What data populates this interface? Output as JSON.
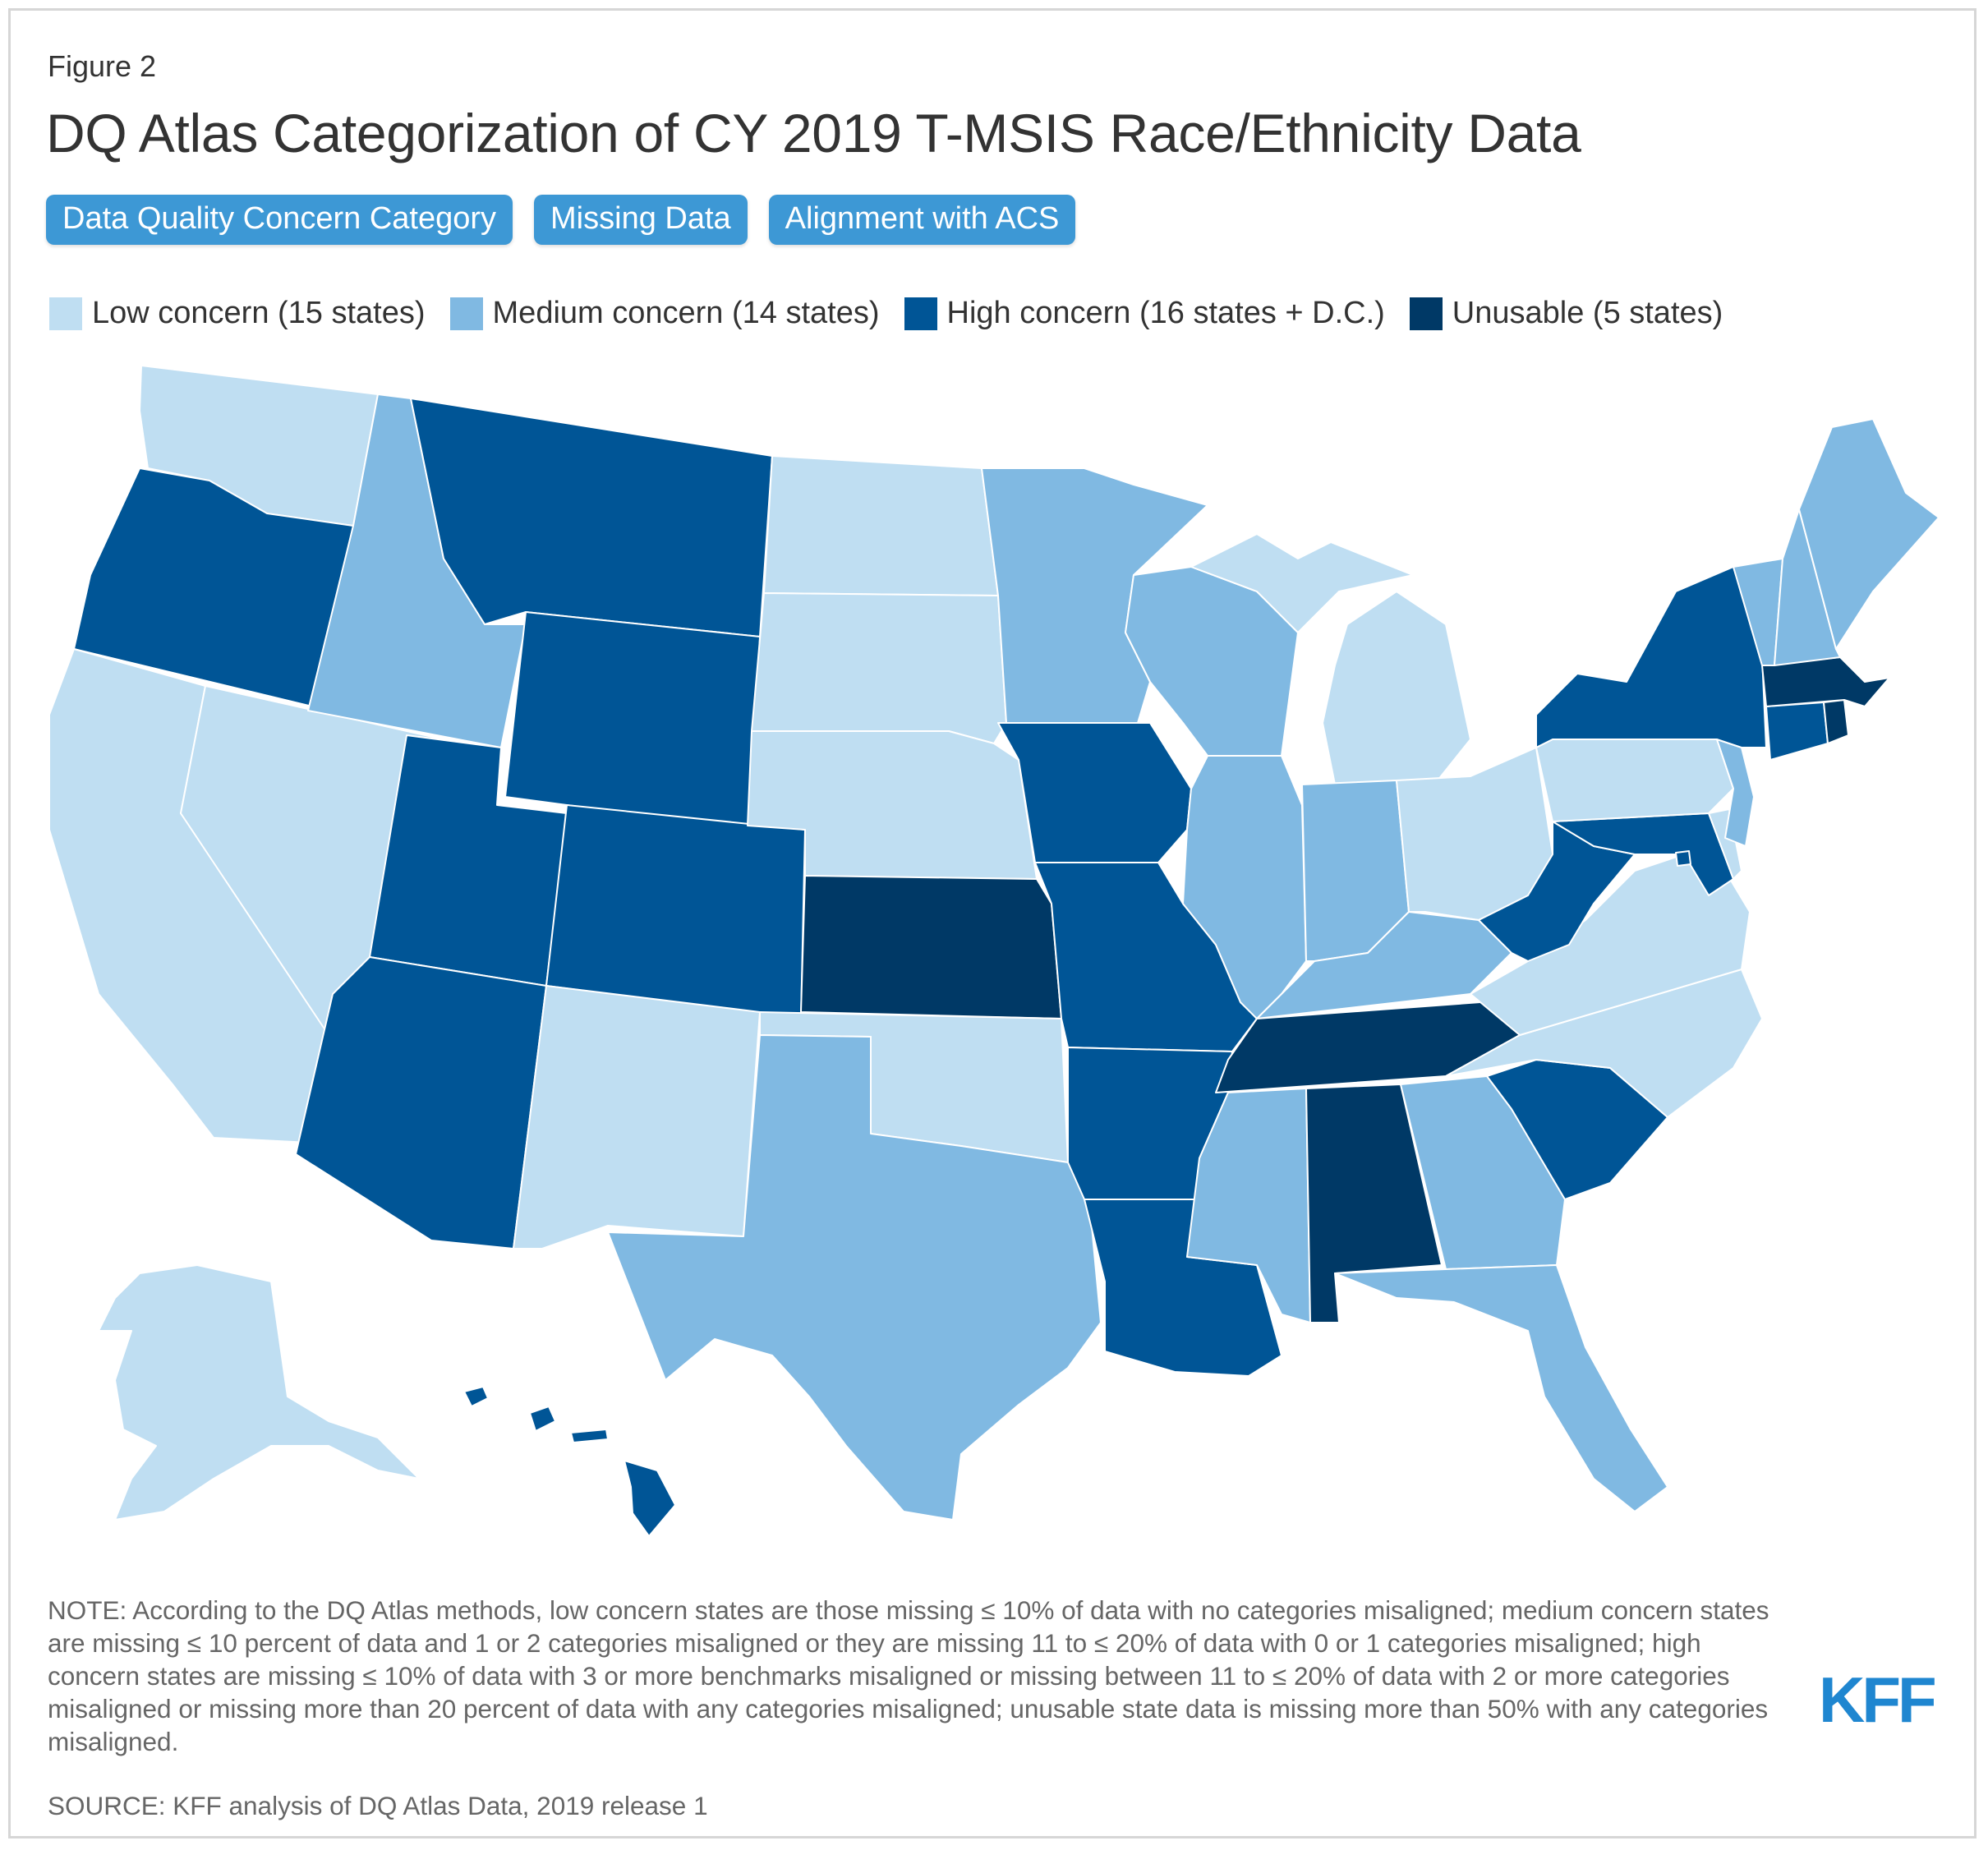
{
  "figure_label": "Figure 2",
  "title": "DQ Atlas Categorization of CY 2019 T-MSIS Race/Ethnicity Data",
  "tabs": [
    {
      "label": "Data Quality Concern Category"
    },
    {
      "label": "Missing Data"
    },
    {
      "label": "Alignment with ACS"
    }
  ],
  "colors": {
    "low": "#bfdef2",
    "medium": "#80b9e2",
    "high": "#005596",
    "unusable": "#003966"
  },
  "legend": [
    {
      "label": "Low concern (15 states)",
      "category": "low"
    },
    {
      "label": "Medium concern (14 states)",
      "category": "medium"
    },
    {
      "label": "High concern (16 states + D.C.)",
      "category": "high"
    },
    {
      "label": "Unusable (5 states)",
      "category": "unusable"
    }
  ],
  "states": {
    "WA": "low",
    "OR": "high",
    "CA": "low",
    "NV": "low",
    "ID": "medium",
    "MT": "high",
    "WY": "high",
    "UT": "high",
    "AZ": "high",
    "CO": "high",
    "NM": "low",
    "ND": "low",
    "SD": "low",
    "NE": "low",
    "KS": "unusable",
    "OK": "low",
    "TX": "medium",
    "MN": "medium",
    "IA": "high",
    "MO": "high",
    "AR": "high",
    "LA": "high",
    "WI": "medium",
    "IL": "medium",
    "MI": "low",
    "IN": "medium",
    "OH": "low",
    "KY": "medium",
    "TN": "unusable",
    "MS": "medium",
    "AL": "unusable",
    "GA": "medium",
    "FL": "medium",
    "SC": "high",
    "NC": "low",
    "VA": "low",
    "WV": "high",
    "MD": "high",
    "DE": "low",
    "NJ": "medium",
    "PA": "low",
    "NY": "high",
    "CT": "high",
    "RI": "unusable",
    "MA": "unusable",
    "VT": "medium",
    "NH": "medium",
    "ME": "medium",
    "AK": "low",
    "HI": "high",
    "DC": "high"
  },
  "note": "NOTE: According to the DQ Atlas methods, low concern states are those missing ≤ 10% of data with no categories misaligned; medium concern states are missing ≤ 10 percent of data and 1 or 2 categories misaligned or they are missing 11 to ≤ 20% of data with 0 or 1 categories misaligned; high concern states are missing ≤ 10% of data with 3 or more benchmarks misaligned or missing between 11 to ≤ 20% of data with 2 or more categories misaligned or missing more than 20 percent of data with any categories misaligned; unusable state data is missing more than 50% with any categories misaligned.",
  "source": "SOURCE: KFF analysis of DQ Atlas Data, 2019 release 1",
  "logo": "KFF"
}
